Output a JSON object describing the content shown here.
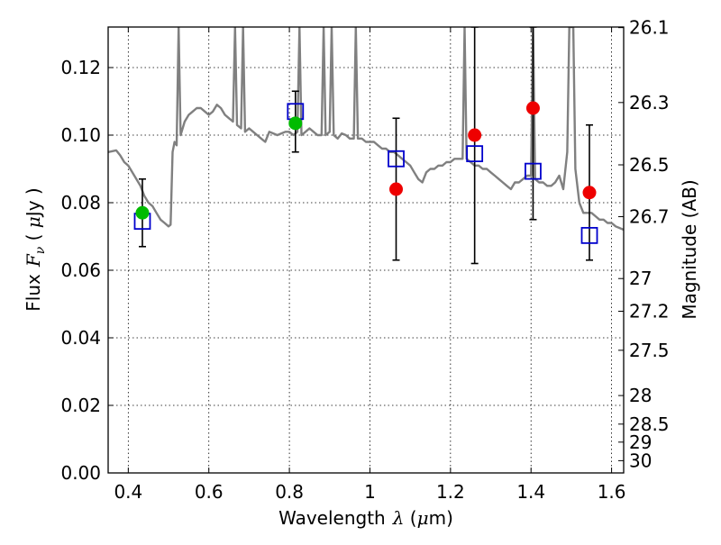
{
  "chart_data": {
    "type": "scatter",
    "xlabel": {
      "prefix": "Wavelength",
      "symbol": "λ",
      "open": " (",
      "unit_symbol": "μ",
      "unit": "m)"
    },
    "ylabel": {
      "prefix": "Flux",
      "symbol": "F",
      "subscript": "ν",
      "open": " ( ",
      "unit_symbol": "μ",
      "unit": "Jy )"
    },
    "y2label": "Magnitude (AB)",
    "xlim": [
      0.35,
      1.63
    ],
    "ylim": [
      0.0,
      0.132
    ],
    "grid": true,
    "x_ticks": [
      {
        "value": 0.4,
        "label": "0.4"
      },
      {
        "value": 0.6,
        "label": "0.6"
      },
      {
        "value": 0.8,
        "label": "0.8"
      },
      {
        "value": 1.0,
        "label": "1"
      },
      {
        "value": 1.2,
        "label": "1.2"
      },
      {
        "value": 1.4,
        "label": "1.4"
      },
      {
        "value": 1.6,
        "label": "1.6"
      }
    ],
    "y_ticks": [
      {
        "value": 0.0,
        "label": "0.00"
      },
      {
        "value": 0.02,
        "label": "0.02"
      },
      {
        "value": 0.04,
        "label": "0.04"
      },
      {
        "value": 0.06,
        "label": "0.06"
      },
      {
        "value": 0.08,
        "label": "0.08"
      },
      {
        "value": 0.1,
        "label": "0.10"
      },
      {
        "value": 0.12,
        "label": "0.12"
      }
    ],
    "y2_ticks": [
      {
        "label": "26.1",
        "magnitude": 26.1
      },
      {
        "label": "26.3",
        "magnitude": 26.3
      },
      {
        "label": "26.5",
        "magnitude": 26.5
      },
      {
        "label": "26.7",
        "magnitude": 26.7
      },
      {
        "label": "27",
        "magnitude": 27.0
      },
      {
        "label": "27.2",
        "magnitude": 27.2
      },
      {
        "label": "27.5",
        "magnitude": 27.5
      },
      {
        "label": "28",
        "magnitude": 28.0
      },
      {
        "label": "28.5",
        "magnitude": 28.5
      },
      {
        "label": "29",
        "magnitude": 29.0
      },
      {
        "label": "30",
        "magnitude": 30.0
      }
    ],
    "series": [
      {
        "kind": "line",
        "color": "#808080",
        "points": [
          [
            0.35,
            0.095
          ],
          [
            0.37,
            0.0955
          ],
          [
            0.38,
            0.094
          ],
          [
            0.39,
            0.092
          ],
          [
            0.4,
            0.091
          ],
          [
            0.41,
            0.089
          ],
          [
            0.42,
            0.087
          ],
          [
            0.43,
            0.085
          ],
          [
            0.44,
            0.082
          ],
          [
            0.45,
            0.08
          ],
          [
            0.46,
            0.079
          ],
          [
            0.47,
            0.077
          ],
          [
            0.48,
            0.075
          ],
          [
            0.49,
            0.074
          ],
          [
            0.5,
            0.073
          ],
          [
            0.505,
            0.0735
          ],
          [
            0.51,
            0.095
          ],
          [
            0.515,
            0.098
          ],
          [
            0.52,
            0.097
          ],
          [
            0.525,
            0.132
          ],
          [
            0.53,
            0.1
          ],
          [
            0.54,
            0.104
          ],
          [
            0.55,
            0.106
          ],
          [
            0.56,
            0.107
          ],
          [
            0.57,
            0.108
          ],
          [
            0.58,
            0.108
          ],
          [
            0.59,
            0.107
          ],
          [
            0.6,
            0.106
          ],
          [
            0.61,
            0.107
          ],
          [
            0.62,
            0.109
          ],
          [
            0.63,
            0.108
          ],
          [
            0.64,
            0.106
          ],
          [
            0.65,
            0.105
          ],
          [
            0.66,
            0.104
          ],
          [
            0.665,
            0.132
          ],
          [
            0.67,
            0.103
          ],
          [
            0.68,
            0.102
          ],
          [
            0.685,
            0.132
          ],
          [
            0.69,
            0.101
          ],
          [
            0.7,
            0.102
          ],
          [
            0.71,
            0.101
          ],
          [
            0.72,
            0.1
          ],
          [
            0.73,
            0.099
          ],
          [
            0.74,
            0.098
          ],
          [
            0.75,
            0.101
          ],
          [
            0.76,
            0.1005
          ],
          [
            0.77,
            0.1
          ],
          [
            0.78,
            0.1005
          ],
          [
            0.79,
            0.101
          ],
          [
            0.8,
            0.101
          ],
          [
            0.81,
            0.1
          ],
          [
            0.82,
            0.101
          ],
          [
            0.825,
            0.132
          ],
          [
            0.83,
            0.1
          ],
          [
            0.84,
            0.101
          ],
          [
            0.85,
            0.102
          ],
          [
            0.86,
            0.101
          ],
          [
            0.87,
            0.1
          ],
          [
            0.88,
            0.1
          ],
          [
            0.885,
            0.132
          ],
          [
            0.89,
            0.1
          ],
          [
            0.9,
            0.101
          ],
          [
            0.905,
            0.132
          ],
          [
            0.91,
            0.1
          ],
          [
            0.92,
            0.099
          ],
          [
            0.93,
            0.1005
          ],
          [
            0.94,
            0.1
          ],
          [
            0.95,
            0.099
          ],
          [
            0.96,
            0.099
          ],
          [
            0.965,
            0.132
          ],
          [
            0.97,
            0.099
          ],
          [
            0.98,
            0.099
          ],
          [
            0.99,
            0.098
          ],
          [
            1.0,
            0.098
          ],
          [
            1.01,
            0.098
          ],
          [
            1.02,
            0.097
          ],
          [
            1.03,
            0.096
          ],
          [
            1.04,
            0.096
          ],
          [
            1.05,
            0.095
          ],
          [
            1.06,
            0.095
          ],
          [
            1.07,
            0.094
          ],
          [
            1.08,
            0.093
          ],
          [
            1.09,
            0.092
          ],
          [
            1.1,
            0.091
          ],
          [
            1.11,
            0.089
          ],
          [
            1.12,
            0.087
          ],
          [
            1.13,
            0.086
          ],
          [
            1.14,
            0.089
          ],
          [
            1.15,
            0.09
          ],
          [
            1.16,
            0.09
          ],
          [
            1.17,
            0.091
          ],
          [
            1.18,
            0.091
          ],
          [
            1.19,
            0.092
          ],
          [
            1.2,
            0.092
          ],
          [
            1.21,
            0.093
          ],
          [
            1.22,
            0.093
          ],
          [
            1.23,
            0.093
          ],
          [
            1.235,
            0.132
          ],
          [
            1.24,
            0.093
          ],
          [
            1.25,
            0.092
          ],
          [
            1.26,
            0.091
          ],
          [
            1.27,
            0.091
          ],
          [
            1.28,
            0.09
          ],
          [
            1.29,
            0.09
          ],
          [
            1.3,
            0.089
          ],
          [
            1.31,
            0.088
          ],
          [
            1.32,
            0.087
          ],
          [
            1.33,
            0.086
          ],
          [
            1.34,
            0.085
          ],
          [
            1.35,
            0.084
          ],
          [
            1.36,
            0.086
          ],
          [
            1.37,
            0.086
          ],
          [
            1.38,
            0.087
          ],
          [
            1.39,
            0.088
          ],
          [
            1.4,
            0.088
          ],
          [
            1.405,
            0.132
          ],
          [
            1.41,
            0.087
          ],
          [
            1.42,
            0.086
          ],
          [
            1.43,
            0.086
          ],
          [
            1.44,
            0.085
          ],
          [
            1.45,
            0.085
          ],
          [
            1.46,
            0.086
          ],
          [
            1.47,
            0.088
          ],
          [
            1.48,
            0.084
          ],
          [
            1.49,
            0.095
          ],
          [
            1.495,
            0.132
          ],
          [
            1.5,
            0.132
          ],
          [
            1.505,
            0.132
          ],
          [
            1.51,
            0.09
          ],
          [
            1.52,
            0.08
          ],
          [
            1.53,
            0.077
          ],
          [
            1.54,
            0.077
          ],
          [
            1.55,
            0.077
          ],
          [
            1.56,
            0.076
          ],
          [
            1.57,
            0.075
          ],
          [
            1.58,
            0.075
          ],
          [
            1.59,
            0.074
          ],
          [
            1.6,
            0.074
          ],
          [
            1.61,
            0.073
          ],
          [
            1.62,
            0.0725
          ],
          [
            1.63,
            0.072
          ]
        ]
      },
      {
        "kind": "errorbar",
        "color": "#000000",
        "points": [
          {
            "x": 0.435,
            "y": 0.077,
            "ylo": 0.067,
            "yhi": 0.087
          },
          {
            "x": 0.815,
            "y": 0.104,
            "ylo": 0.095,
            "yhi": 0.113
          },
          {
            "x": 1.065,
            "y": 0.084,
            "ylo": 0.063,
            "yhi": 0.105
          },
          {
            "x": 1.26,
            "y": 0.1,
            "ylo": 0.062,
            "yhi": 0.132
          },
          {
            "x": 1.405,
            "y": 0.108,
            "ylo": 0.075,
            "yhi": 0.132
          },
          {
            "x": 1.545,
            "y": 0.083,
            "ylo": 0.063,
            "yhi": 0.103
          }
        ]
      },
      {
        "kind": "square",
        "color": "#0000cc",
        "points": [
          {
            "x": 0.435,
            "y": 0.0745
          },
          {
            "x": 0.815,
            "y": 0.107
          },
          {
            "x": 1.065,
            "y": 0.093
          },
          {
            "x": 1.26,
            "y": 0.0945
          },
          {
            "x": 1.405,
            "y": 0.0893
          },
          {
            "x": 1.545,
            "y": 0.0703
          }
        ]
      },
      {
        "kind": "circle",
        "color": "#00bb00",
        "points": [
          {
            "x": 0.435,
            "y": 0.077
          },
          {
            "x": 0.815,
            "y": 0.1035
          }
        ]
      },
      {
        "kind": "circle",
        "color": "#ee0000",
        "points": [
          {
            "x": 1.065,
            "y": 0.084
          },
          {
            "x": 1.26,
            "y": 0.1
          },
          {
            "x": 1.405,
            "y": 0.108
          },
          {
            "x": 1.545,
            "y": 0.083
          }
        ]
      }
    ]
  }
}
